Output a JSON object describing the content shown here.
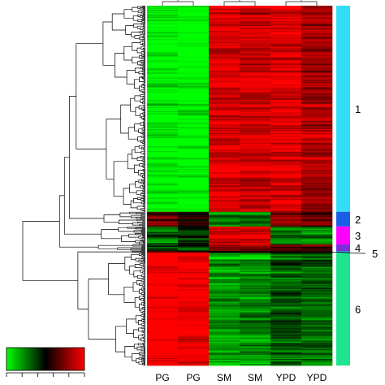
{
  "chart_data": {
    "type": "heatmap",
    "title": "",
    "xlabel": "",
    "ylabel": "",
    "columns": [
      "PG",
      "PG",
      "SM",
      "SM",
      "YPD",
      "YPD"
    ],
    "column_dendrogram": {
      "pairs": [
        [
          0,
          1
        ],
        [
          2,
          3
        ],
        [
          4,
          5
        ]
      ]
    },
    "row_dendrogram": true,
    "color_scale": {
      "stops": [
        "#00ff00",
        "#000000",
        "#ff0000"
      ],
      "key_ticks": 6,
      "legend_position": "bottom-left"
    },
    "clusters": [
      {
        "label": "1",
        "color": "#33ddf7",
        "rows": 252,
        "column_means": [
          -0.85,
          -0.9,
          0.75,
          0.7,
          0.75,
          0.55
        ]
      },
      {
        "label": "2",
        "color": "#1a5fe8",
        "rows": 18,
        "column_means": [
          0.35,
          0.1,
          -0.45,
          -0.4,
          0.55,
          0.3
        ]
      },
      {
        "label": "3",
        "color": "#ff00ff",
        "rows": 22,
        "column_means": [
          -0.35,
          -0.15,
          0.75,
          0.75,
          -0.35,
          -0.45
        ]
      },
      {
        "label": "4",
        "color": "#7b2fd6",
        "rows": 8,
        "column_means": [
          -0.3,
          -0.3,
          0.45,
          0.4,
          0.3,
          0.25
        ]
      },
      {
        "label": "5",
        "color": "#2a8bd0",
        "rows": 2,
        "column_means": [
          0.2,
          0.2,
          0.0,
          0.0,
          0.0,
          0.0
        ]
      },
      {
        "label": "6",
        "color": "#1ee58f",
        "rows": 138,
        "column_means": [
          0.85,
          0.8,
          -0.55,
          -0.5,
          -0.35,
          -0.35
        ]
      }
    ]
  }
}
